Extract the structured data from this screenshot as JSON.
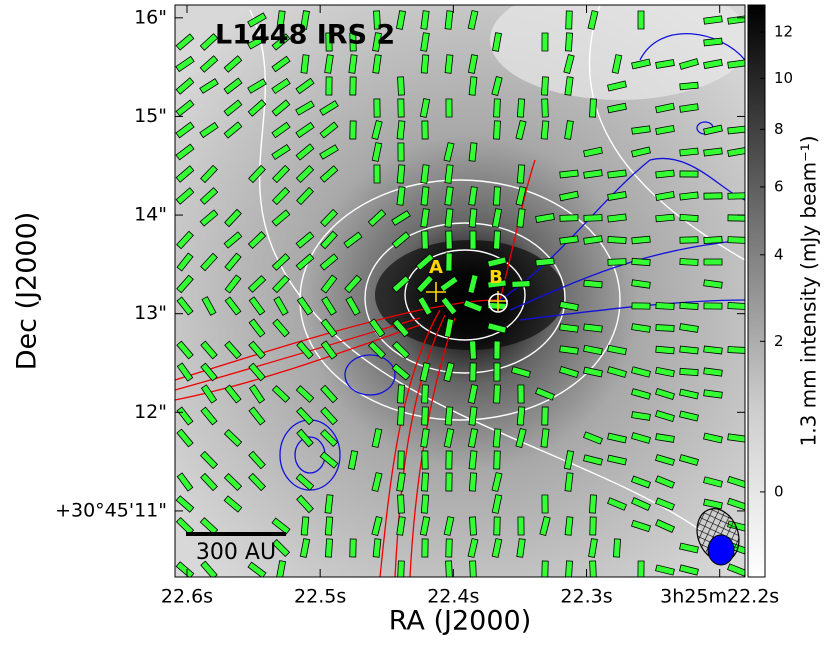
{
  "chart_data": {
    "type": "image",
    "title": "L1448 IRS 2",
    "x_label": "RA (J2000)",
    "y_label": "Dec (J2000)",
    "xlim": [
      22.609,
      22.181
    ],
    "xticks": [
      {
        "value": 22.6,
        "label": "22.6s"
      },
      {
        "value": 22.5,
        "label": "22.5s"
      },
      {
        "value": 22.4,
        "label": "22.4s"
      },
      {
        "value": 22.3,
        "label": "22.3s"
      },
      {
        "value": 22.2,
        "label": "3h25m22.2s"
      }
    ],
    "ylim": [
      10.33,
      16.13
    ],
    "yticks": [
      {
        "value": 16,
        "label": "16\""
      },
      {
        "value": 15,
        "label": "15\""
      },
      {
        "value": 14,
        "label": "14\""
      },
      {
        "value": 13,
        "label": "13\""
      },
      {
        "value": 12,
        "label": "12\""
      },
      {
        "value": 11,
        "label": "+30°45'11\""
      }
    ],
    "colorbar_label": "1.3 mm intensity (mJy beam⁻¹)",
    "colorbar_scale": "sqrt",
    "clim": [
      -0.3,
      13.25
    ],
    "cticks": [
      12,
      10,
      8,
      6,
      4,
      2,
      0
    ],
    "scale_bar": "300 AU",
    "sources": [
      "A",
      "B"
    ]
  }
}
